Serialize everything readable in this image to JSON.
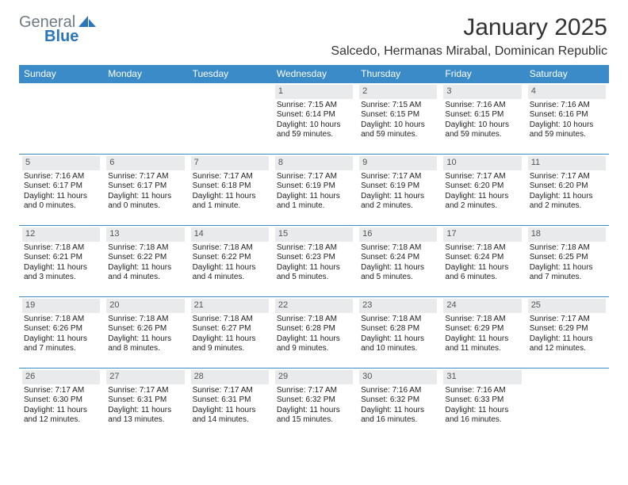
{
  "brand": {
    "line1": "General",
    "line2": "Blue",
    "sail_color": "#2a75bb"
  },
  "title": "January 2025",
  "location": "Salcedo, Hermanas Mirabal, Dominican Republic",
  "columns": [
    "Sunday",
    "Monday",
    "Tuesday",
    "Wednesday",
    "Thursday",
    "Friday",
    "Saturday"
  ],
  "style": {
    "header_bg": "#3b8bc8",
    "header_fg": "#ffffff",
    "daynum_bg": "#e9eaec",
    "daynum_fg": "#555555",
    "cell_border": "#3b8bc8",
    "page_bg": "#ffffff",
    "text_color": "#222222",
    "title_fontsize": 30,
    "location_fontsize": 16,
    "header_fontsize": 12,
    "cell_fontsize": 10
  },
  "weeks": [
    [
      {
        "n": "",
        "lines": []
      },
      {
        "n": "",
        "lines": []
      },
      {
        "n": "",
        "lines": []
      },
      {
        "n": "1",
        "lines": [
          "Sunrise: 7:15 AM",
          "Sunset: 6:14 PM",
          "Daylight: 10 hours",
          "and 59 minutes."
        ]
      },
      {
        "n": "2",
        "lines": [
          "Sunrise: 7:15 AM",
          "Sunset: 6:15 PM",
          "Daylight: 10 hours",
          "and 59 minutes."
        ]
      },
      {
        "n": "3",
        "lines": [
          "Sunrise: 7:16 AM",
          "Sunset: 6:15 PM",
          "Daylight: 10 hours",
          "and 59 minutes."
        ]
      },
      {
        "n": "4",
        "lines": [
          "Sunrise: 7:16 AM",
          "Sunset: 6:16 PM",
          "Daylight: 10 hours",
          "and 59 minutes."
        ]
      }
    ],
    [
      {
        "n": "5",
        "lines": [
          "Sunrise: 7:16 AM",
          "Sunset: 6:17 PM",
          "Daylight: 11 hours",
          "and 0 minutes."
        ]
      },
      {
        "n": "6",
        "lines": [
          "Sunrise: 7:17 AM",
          "Sunset: 6:17 PM",
          "Daylight: 11 hours",
          "and 0 minutes."
        ]
      },
      {
        "n": "7",
        "lines": [
          "Sunrise: 7:17 AM",
          "Sunset: 6:18 PM",
          "Daylight: 11 hours",
          "and 1 minute."
        ]
      },
      {
        "n": "8",
        "lines": [
          "Sunrise: 7:17 AM",
          "Sunset: 6:19 PM",
          "Daylight: 11 hours",
          "and 1 minute."
        ]
      },
      {
        "n": "9",
        "lines": [
          "Sunrise: 7:17 AM",
          "Sunset: 6:19 PM",
          "Daylight: 11 hours",
          "and 2 minutes."
        ]
      },
      {
        "n": "10",
        "lines": [
          "Sunrise: 7:17 AM",
          "Sunset: 6:20 PM",
          "Daylight: 11 hours",
          "and 2 minutes."
        ]
      },
      {
        "n": "11",
        "lines": [
          "Sunrise: 7:17 AM",
          "Sunset: 6:20 PM",
          "Daylight: 11 hours",
          "and 2 minutes."
        ]
      }
    ],
    [
      {
        "n": "12",
        "lines": [
          "Sunrise: 7:18 AM",
          "Sunset: 6:21 PM",
          "Daylight: 11 hours",
          "and 3 minutes."
        ]
      },
      {
        "n": "13",
        "lines": [
          "Sunrise: 7:18 AM",
          "Sunset: 6:22 PM",
          "Daylight: 11 hours",
          "and 4 minutes."
        ]
      },
      {
        "n": "14",
        "lines": [
          "Sunrise: 7:18 AM",
          "Sunset: 6:22 PM",
          "Daylight: 11 hours",
          "and 4 minutes."
        ]
      },
      {
        "n": "15",
        "lines": [
          "Sunrise: 7:18 AM",
          "Sunset: 6:23 PM",
          "Daylight: 11 hours",
          "and 5 minutes."
        ]
      },
      {
        "n": "16",
        "lines": [
          "Sunrise: 7:18 AM",
          "Sunset: 6:24 PM",
          "Daylight: 11 hours",
          "and 5 minutes."
        ]
      },
      {
        "n": "17",
        "lines": [
          "Sunrise: 7:18 AM",
          "Sunset: 6:24 PM",
          "Daylight: 11 hours",
          "and 6 minutes."
        ]
      },
      {
        "n": "18",
        "lines": [
          "Sunrise: 7:18 AM",
          "Sunset: 6:25 PM",
          "Daylight: 11 hours",
          "and 7 minutes."
        ]
      }
    ],
    [
      {
        "n": "19",
        "lines": [
          "Sunrise: 7:18 AM",
          "Sunset: 6:26 PM",
          "Daylight: 11 hours",
          "and 7 minutes."
        ]
      },
      {
        "n": "20",
        "lines": [
          "Sunrise: 7:18 AM",
          "Sunset: 6:26 PM",
          "Daylight: 11 hours",
          "and 8 minutes."
        ]
      },
      {
        "n": "21",
        "lines": [
          "Sunrise: 7:18 AM",
          "Sunset: 6:27 PM",
          "Daylight: 11 hours",
          "and 9 minutes."
        ]
      },
      {
        "n": "22",
        "lines": [
          "Sunrise: 7:18 AM",
          "Sunset: 6:28 PM",
          "Daylight: 11 hours",
          "and 9 minutes."
        ]
      },
      {
        "n": "23",
        "lines": [
          "Sunrise: 7:18 AM",
          "Sunset: 6:28 PM",
          "Daylight: 11 hours",
          "and 10 minutes."
        ]
      },
      {
        "n": "24",
        "lines": [
          "Sunrise: 7:18 AM",
          "Sunset: 6:29 PM",
          "Daylight: 11 hours",
          "and 11 minutes."
        ]
      },
      {
        "n": "25",
        "lines": [
          "Sunrise: 7:17 AM",
          "Sunset: 6:29 PM",
          "Daylight: 11 hours",
          "and 12 minutes."
        ]
      }
    ],
    [
      {
        "n": "26",
        "lines": [
          "Sunrise: 7:17 AM",
          "Sunset: 6:30 PM",
          "Daylight: 11 hours",
          "and 12 minutes."
        ]
      },
      {
        "n": "27",
        "lines": [
          "Sunrise: 7:17 AM",
          "Sunset: 6:31 PM",
          "Daylight: 11 hours",
          "and 13 minutes."
        ]
      },
      {
        "n": "28",
        "lines": [
          "Sunrise: 7:17 AM",
          "Sunset: 6:31 PM",
          "Daylight: 11 hours",
          "and 14 minutes."
        ]
      },
      {
        "n": "29",
        "lines": [
          "Sunrise: 7:17 AM",
          "Sunset: 6:32 PM",
          "Daylight: 11 hours",
          "and 15 minutes."
        ]
      },
      {
        "n": "30",
        "lines": [
          "Sunrise: 7:16 AM",
          "Sunset: 6:32 PM",
          "Daylight: 11 hours",
          "and 16 minutes."
        ]
      },
      {
        "n": "31",
        "lines": [
          "Sunrise: 7:16 AM",
          "Sunset: 6:33 PM",
          "Daylight: 11 hours",
          "and 16 minutes."
        ]
      },
      {
        "n": "",
        "lines": []
      }
    ]
  ]
}
